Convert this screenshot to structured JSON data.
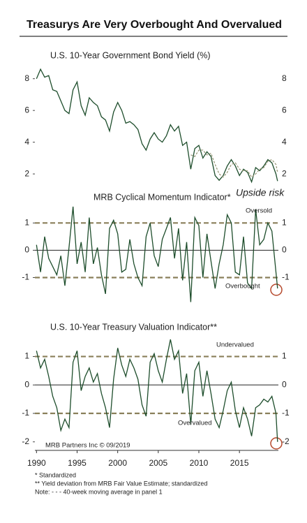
{
  "title": "Treasurys Are Very Overbought And Overvalued",
  "notes": [
    "*  Standardized",
    "** Yield deviation from MRB Fair Value Estimate; standardized",
    "Note: - - - 40-week moving average in panel 1"
  ],
  "chart_data": [
    {
      "type": "line",
      "title": "U.S. 10-Year Government Bond Yield (%)",
      "x": [
        1990,
        1990.5,
        1991,
        1991.5,
        1992,
        1992.5,
        1993,
        1993.5,
        1994,
        1994.5,
        1995,
        1995.5,
        1996,
        1996.5,
        1997,
        1997.5,
        1998,
        1998.5,
        1999,
        1999.5,
        2000,
        2000.5,
        2001,
        2001.5,
        2002,
        2002.5,
        2003,
        2003.5,
        2004,
        2004.5,
        2005,
        2005.5,
        2006,
        2006.5,
        2007,
        2007.5,
        2008,
        2008.5,
        2009,
        2009.5,
        2010,
        2010.5,
        2011,
        2011.5,
        2012,
        2012.5,
        2013,
        2013.5,
        2014,
        2014.5,
        2015,
        2015.5,
        2016,
        2016.5,
        2017,
        2017.5,
        2018,
        2018.5,
        2019,
        2019.5,
        2019.7
      ],
      "series": [
        {
          "color": "#1d4d2b",
          "style": "solid",
          "values": [
            8.0,
            8.6,
            8.1,
            8.2,
            7.3,
            7.2,
            6.6,
            6.0,
            5.8,
            7.3,
            7.8,
            6.3,
            5.7,
            6.8,
            6.5,
            6.3,
            5.6,
            5.4,
            4.7,
            5.9,
            6.5,
            6.0,
            5.2,
            5.3,
            5.1,
            4.8,
            3.9,
            3.5,
            4.2,
            4.6,
            4.2,
            4.0,
            4.4,
            5.1,
            4.7,
            5.0,
            3.8,
            4.0,
            2.3,
            3.6,
            3.8,
            3.0,
            3.4,
            3.1,
            1.9,
            1.6,
            1.9,
            2.5,
            2.9,
            2.5,
            1.9,
            2.3,
            2.1,
            1.5,
            2.4,
            2.2,
            2.5,
            2.9,
            2.7,
            2.0,
            1.55
          ]
        },
        {
          "color": "#9a9a7a",
          "style": "dashed",
          "values": [
            null,
            null,
            null,
            null,
            null,
            null,
            null,
            null,
            null,
            null,
            null,
            null,
            null,
            null,
            null,
            null,
            null,
            null,
            null,
            null,
            null,
            null,
            null,
            null,
            null,
            null,
            null,
            null,
            null,
            null,
            null,
            null,
            null,
            null,
            null,
            null,
            null,
            null,
            3.2,
            3.1,
            3.5,
            3.5,
            3.2,
            3.3,
            2.6,
            2.0,
            1.8,
            2.1,
            2.6,
            2.7,
            2.3,
            2.2,
            2.2,
            1.8,
            2.0,
            2.3,
            2.4,
            2.8,
            2.9,
            2.6,
            2.1
          ]
        }
      ],
      "xlim": [
        1989.8,
        2019.8
      ],
      "ylim": [
        1.3,
        9.0
      ],
      "yticks": [
        2,
        4,
        6,
        8
      ],
      "annotations": [
        {
          "text": "Upside risk",
          "color": "#b5482b"
        }
      ]
    },
    {
      "type": "line",
      "title": "MRB Cyclical Momentum Indicator*",
      "x": [
        1990,
        1990.5,
        1991,
        1991.5,
        1992,
        1992.5,
        1993,
        1993.5,
        1994,
        1994.5,
        1995,
        1995.5,
        1996,
        1996.5,
        1997,
        1997.5,
        1998,
        1998.5,
        1999,
        1999.5,
        2000,
        2000.5,
        2001,
        2001.5,
        2002,
        2002.5,
        2003,
        2003.5,
        2004,
        2004.5,
        2005,
        2005.5,
        2006,
        2006.5,
        2007,
        2007.5,
        2008,
        2008.5,
        2009,
        2009.5,
        2010,
        2010.5,
        2011,
        2011.5,
        2012,
        2012.5,
        2013,
        2013.5,
        2014,
        2014.5,
        2015,
        2015.5,
        2016,
        2016.5,
        2017,
        2017.5,
        2018,
        2018.5,
        2019,
        2019.5,
        2019.7
      ],
      "series": [
        {
          "color": "#1d4d2b",
          "style": "solid",
          "values": [
            0.2,
            -0.8,
            0.5,
            -0.3,
            -0.6,
            -0.9,
            -0.2,
            -1.3,
            0.1,
            1.6,
            -0.5,
            0.3,
            -0.8,
            1.2,
            -0.5,
            0.1,
            -0.9,
            -1.6,
            0.8,
            1.1,
            0.6,
            -0.8,
            -0.7,
            0.4,
            -0.5,
            -1.0,
            -1.3,
            0.5,
            1.0,
            -0.2,
            -0.6,
            0.4,
            0.8,
            1.2,
            -0.3,
            0.8,
            -1.1,
            0.3,
            -1.9,
            1.2,
            0.9,
            -1.0,
            0.6,
            -0.4,
            -1.4,
            -0.5,
            0.2,
            1.3,
            1.0,
            -0.8,
            -0.9,
            0.5,
            -1.2,
            -1.4,
            1.5,
            0.2,
            0.4,
            1.0,
            0.7,
            -0.8,
            -1.4
          ]
        }
      ],
      "xlim": [
        1989.8,
        2019.8
      ],
      "ylim": [
        -2.6,
        1.75
      ],
      "yticks": [
        -1,
        0,
        1
      ],
      "hlines": [
        {
          "value": 1,
          "style": "dashed"
        },
        {
          "value": 0,
          "style": "solid"
        },
        {
          "value": -1,
          "style": "dashed"
        }
      ],
      "annotations": [
        {
          "text": "Oversold"
        },
        {
          "text": "Overbought"
        }
      ]
    },
    {
      "type": "line",
      "title": "U.S. 10-Year Treasury Valuation Indicator**",
      "x": [
        1990,
        1990.5,
        1991,
        1991.5,
        1992,
        1992.5,
        1993,
        1993.5,
        1994,
        1994.5,
        1995,
        1995.5,
        1996,
        1996.5,
        1997,
        1997.5,
        1998,
        1998.5,
        1999,
        1999.5,
        2000,
        2000.5,
        2001,
        2001.5,
        2002,
        2002.5,
        2003,
        2003.5,
        2004,
        2004.5,
        2005,
        2005.5,
        2006,
        2006.5,
        2007,
        2007.5,
        2008,
        2008.5,
        2009,
        2009.5,
        2010,
        2010.5,
        2011,
        2011.5,
        2012,
        2012.5,
        2013,
        2013.5,
        2014,
        2014.5,
        2015,
        2015.5,
        2016,
        2016.5,
        2017,
        2017.5,
        2018,
        2018.5,
        2019,
        2019.5,
        2019.7
      ],
      "series": [
        {
          "color": "#1d4d2b",
          "style": "solid",
          "values": [
            1.2,
            0.6,
            0.9,
            0.3,
            -0.4,
            -0.8,
            -1.6,
            -1.2,
            -1.5,
            0.8,
            1.2,
            -0.2,
            0.3,
            0.6,
            0.1,
            0.4,
            -0.3,
            -0.8,
            -1.5,
            0.2,
            1.3,
            0.7,
            0.3,
            0.9,
            0.6,
            0.2,
            -0.7,
            -1.1,
            0.8,
            1.1,
            0.5,
            0.1,
            0.9,
            1.6,
            0.9,
            1.2,
            -0.3,
            0.4,
            -1.4,
            0.5,
            0.8,
            -0.4,
            0.5,
            -0.3,
            -1.2,
            -1.5,
            -0.9,
            -0.2,
            0.1,
            -0.9,
            -1.5,
            -0.8,
            -1.2,
            -1.8,
            -0.8,
            -0.7,
            -0.5,
            -0.6,
            -0.4,
            -1.0,
            -2.0
          ]
        }
      ],
      "xlim": [
        1989.8,
        2019.8
      ],
      "ylim": [
        -2.3,
        1.75
      ],
      "yticks": [
        -2,
        -1,
        0,
        1
      ],
      "xticks": [
        1990,
        1995,
        2000,
        2005,
        2010,
        2015
      ],
      "hlines": [
        {
          "value": 1,
          "style": "dashed"
        },
        {
          "value": 0,
          "style": "solid"
        },
        {
          "value": -1,
          "style": "dashed"
        }
      ],
      "annotations": [
        {
          "text": "Undervalued"
        },
        {
          "text": "Overvalued"
        },
        {
          "text": "MRB Partners Inc © 09/2019",
          "color": "#888"
        }
      ]
    }
  ]
}
